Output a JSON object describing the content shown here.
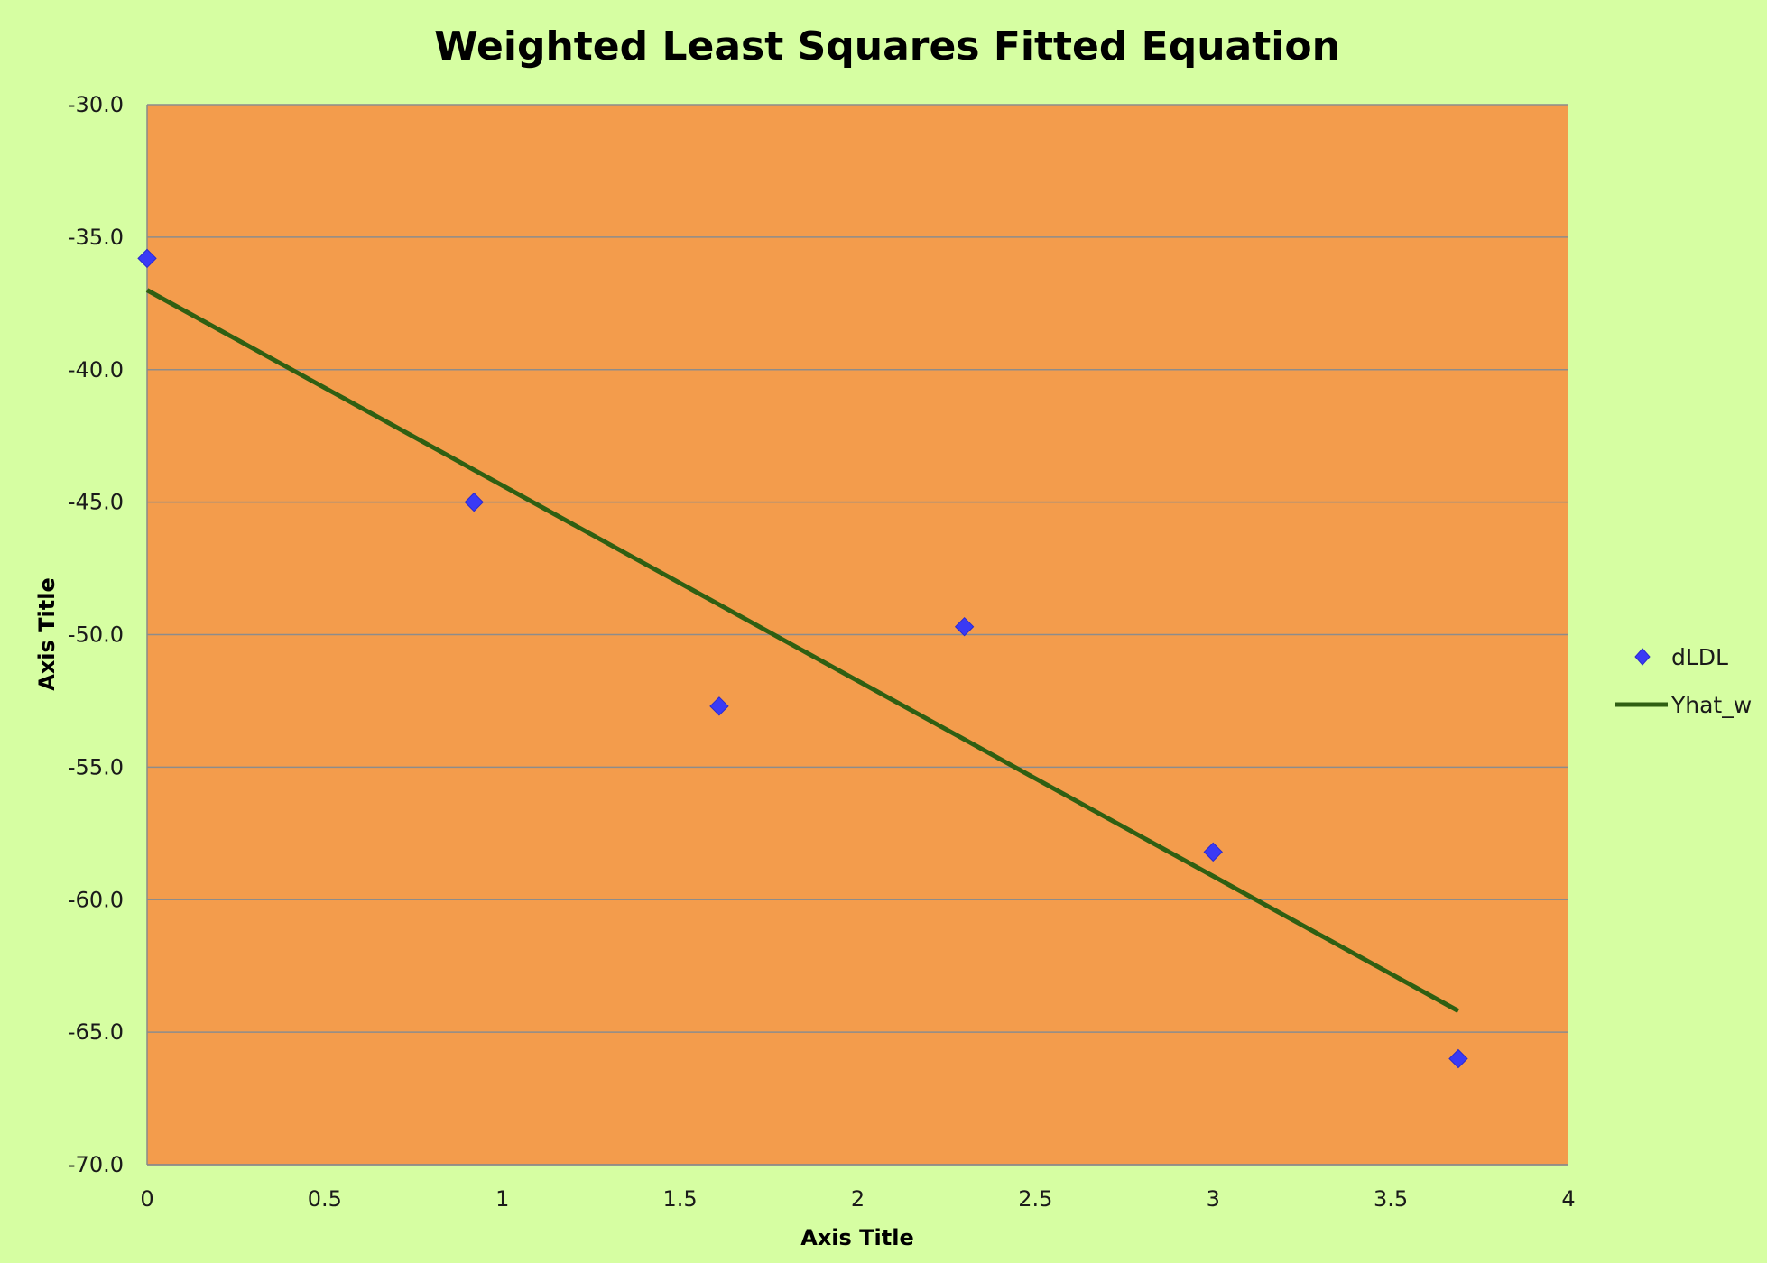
{
  "chart_data": {
    "type": "scatter",
    "title": "Weighted Least Squares Fitted Equation",
    "xlabel": "Axis Title",
    "ylabel": "Axis Title",
    "xlim": [
      0,
      4
    ],
    "ylim": [
      -70,
      -30
    ],
    "x_ticks": [
      "0",
      "0.5",
      "1",
      "1.5",
      "2",
      "2.5",
      "3",
      "3.5",
      "4"
    ],
    "y_ticks": [
      "-30.0",
      "-35.0",
      "-40.0",
      "-45.0",
      "-50.0",
      "-55.0",
      "-60.0",
      "-65.0",
      "-70.0"
    ],
    "grid": true,
    "legend_position": "right",
    "plot_background": "#f39c4c",
    "page_background": "#d6fea2",
    "series": [
      {
        "name": "dLDL",
        "kind": "scatter",
        "marker": "diamond",
        "color": "#3a3af5",
        "x": [
          0,
          0.92,
          1.61,
          2.3,
          3.0,
          3.69
        ],
        "y": [
          -35.8,
          -45.0,
          -52.7,
          -49.7,
          -58.2,
          -66.0
        ]
      },
      {
        "name": "Yhat_w",
        "kind": "line",
        "color": "#2f5f12",
        "x": [
          0,
          3.69
        ],
        "y": [
          -37.0,
          -64.2
        ]
      }
    ]
  }
}
